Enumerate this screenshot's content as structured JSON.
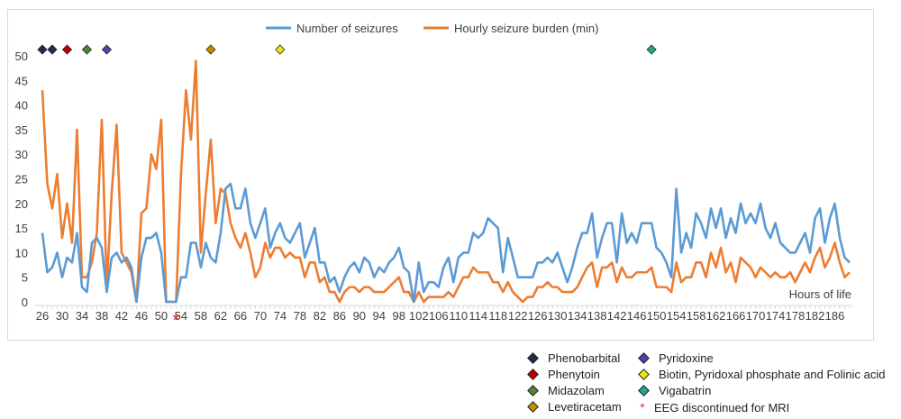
{
  "chart_data": {
    "type": "line",
    "xlabel": "Hours of life",
    "ylim": [
      0,
      50
    ],
    "yticks": [
      0,
      5,
      10,
      15,
      20,
      25,
      30,
      35,
      40,
      45,
      50
    ],
    "x_tick_labels": [
      "26",
      "30",
      "34",
      "38",
      "42",
      "46",
      "50",
      "54",
      "58",
      "62",
      "66",
      "70",
      "74",
      "78",
      "82",
      "86",
      "90",
      "94",
      "98",
      "102",
      "106",
      "110",
      "114",
      "118",
      "122",
      "126",
      "130",
      "134",
      "138",
      "142",
      "146",
      "150",
      "154",
      "158",
      "162",
      "166",
      "170",
      "174",
      "178",
      "182",
      "186"
    ],
    "x_start_hour": 26,
    "x_end_hour": 189,
    "series": [
      {
        "name": "Number of seizures",
        "color": "#5b9bd5",
        "values": [
          14,
          6,
          7,
          10,
          5,
          9,
          8,
          14,
          3,
          2,
          12,
          13,
          11,
          2,
          9,
          10,
          8,
          9,
          7,
          0,
          9,
          13,
          13,
          14,
          10,
          0,
          0,
          0,
          5,
          5,
          12,
          12,
          7,
          12,
          9,
          8,
          14,
          23,
          24,
          19,
          19,
          23,
          16,
          13,
          16,
          19,
          11,
          14,
          16,
          13,
          12,
          14,
          16,
          9,
          12,
          15,
          8,
          8,
          4,
          5,
          2,
          5,
          7,
          8,
          6,
          9,
          8,
          5,
          7,
          6,
          8,
          9,
          11,
          7,
          6,
          0,
          8,
          2,
          4,
          4,
          3,
          7,
          9,
          4,
          9,
          10,
          10,
          14,
          13,
          14,
          17,
          16,
          15,
          6,
          13,
          9,
          5,
          5,
          5,
          5,
          8,
          8,
          9,
          8,
          10,
          7,
          4,
          7,
          11,
          14,
          14,
          18,
          9,
          13,
          16,
          16,
          8,
          18,
          12,
          14,
          12,
          16,
          16,
          16,
          11,
          10,
          8,
          5,
          23,
          10,
          14,
          11,
          18,
          16,
          13,
          19,
          15,
          19,
          13,
          17,
          14,
          20,
          16,
          18,
          16,
          20,
          15,
          13,
          16,
          12,
          11,
          10,
          10,
          12,
          14,
          10,
          17,
          19,
          12,
          17,
          20,
          13,
          9,
          8
        ],
        "label_text": "Number of seizures"
      },
      {
        "name": "Hourly seizure burden (min)",
        "color": "#ed7d31",
        "values": [
          43,
          24,
          19,
          26,
          13,
          20,
          12,
          35,
          5,
          5,
          8,
          14,
          37,
          3,
          22,
          36,
          10,
          8,
          6,
          0,
          18,
          19,
          30,
          27,
          37,
          0,
          0,
          0,
          26,
          43,
          33,
          49,
          10,
          22,
          33,
          16,
          23,
          22,
          16,
          13,
          11,
          14,
          10,
          5,
          7,
          12,
          9,
          11,
          11,
          9,
          10,
          9,
          9,
          5,
          8,
          8,
          4,
          5,
          2,
          2,
          0,
          2,
          3,
          3,
          2,
          3,
          3,
          2,
          2,
          2,
          3,
          4,
          5,
          2,
          2,
          0,
          2,
          0,
          1,
          1,
          1,
          1,
          2,
          1,
          3,
          5,
          5,
          7,
          6,
          6,
          6,
          4,
          4,
          2,
          4,
          2,
          1,
          0,
          1,
          1,
          3,
          3,
          4,
          3,
          3,
          2,
          2,
          2,
          3,
          5,
          7,
          8,
          3,
          7,
          7,
          8,
          4,
          7,
          5,
          5,
          6,
          6,
          6,
          7,
          3,
          3,
          3,
          2,
          8,
          4,
          5,
          5,
          8,
          8,
          5,
          10,
          7,
          11,
          6,
          8,
          4,
          9,
          8,
          7,
          5,
          7,
          6,
          5,
          6,
          5,
          5,
          6,
          4,
          6,
          8,
          6,
          9,
          11,
          7,
          9,
          12,
          8,
          5,
          6
        ],
        "label_text": "Hourly seizure burden (min)"
      }
    ],
    "medication_markers": [
      {
        "name": "Phenobarbital",
        "hour": 26,
        "color": "#1f2d4d"
      },
      {
        "name": "Phenobarbital",
        "hour": 28,
        "color": "#1f2d4d"
      },
      {
        "name": "Phenytoin",
        "hour": 31,
        "color": "#c00000"
      },
      {
        "name": "Midazolam",
        "hour": 35,
        "color": "#548235"
      },
      {
        "name": "Pyridoxine",
        "hour": 39,
        "color": "#5b3fa6"
      },
      {
        "name": "Levetiracetam",
        "hour": 60,
        "color": "#c09000"
      },
      {
        "name": "Biotin, Pyridoxal phosphate and Folinic acid",
        "hour": 74,
        "color": "#e6e619"
      },
      {
        "name": "Vigabatrin",
        "hour": 149,
        "color": "#1ea88c"
      }
    ],
    "eeg_discontinued_marker": {
      "hour": 53,
      "symbol": "*",
      "color": "#e0302b"
    },
    "legend": {
      "top": [
        "Number of seizures",
        "Hourly seizure burden (min)"
      ],
      "bottom": [
        {
          "label": "Phenobarbital",
          "color": "#1f2d4d",
          "symbol": "diamond"
        },
        {
          "label": "Pyridoxine",
          "color": "#5b3fa6",
          "symbol": "diamond"
        },
        {
          "label": "Phenytoin",
          "color": "#c00000",
          "symbol": "diamond"
        },
        {
          "label": "Biotin, Pyridoxal phosphate and Folinic acid",
          "color": "#e6e619",
          "symbol": "diamond"
        },
        {
          "label": "Midazolam",
          "color": "#548235",
          "symbol": "diamond"
        },
        {
          "label": "Vigabatrin",
          "color": "#1ea88c",
          "symbol": "diamond"
        },
        {
          "label": "Levetiracetam",
          "color": "#c09000",
          "symbol": "diamond"
        },
        {
          "label": "EEG discontinued for MRI",
          "color": "#e0302b",
          "symbol": "*"
        }
      ]
    },
    "grid": false
  }
}
